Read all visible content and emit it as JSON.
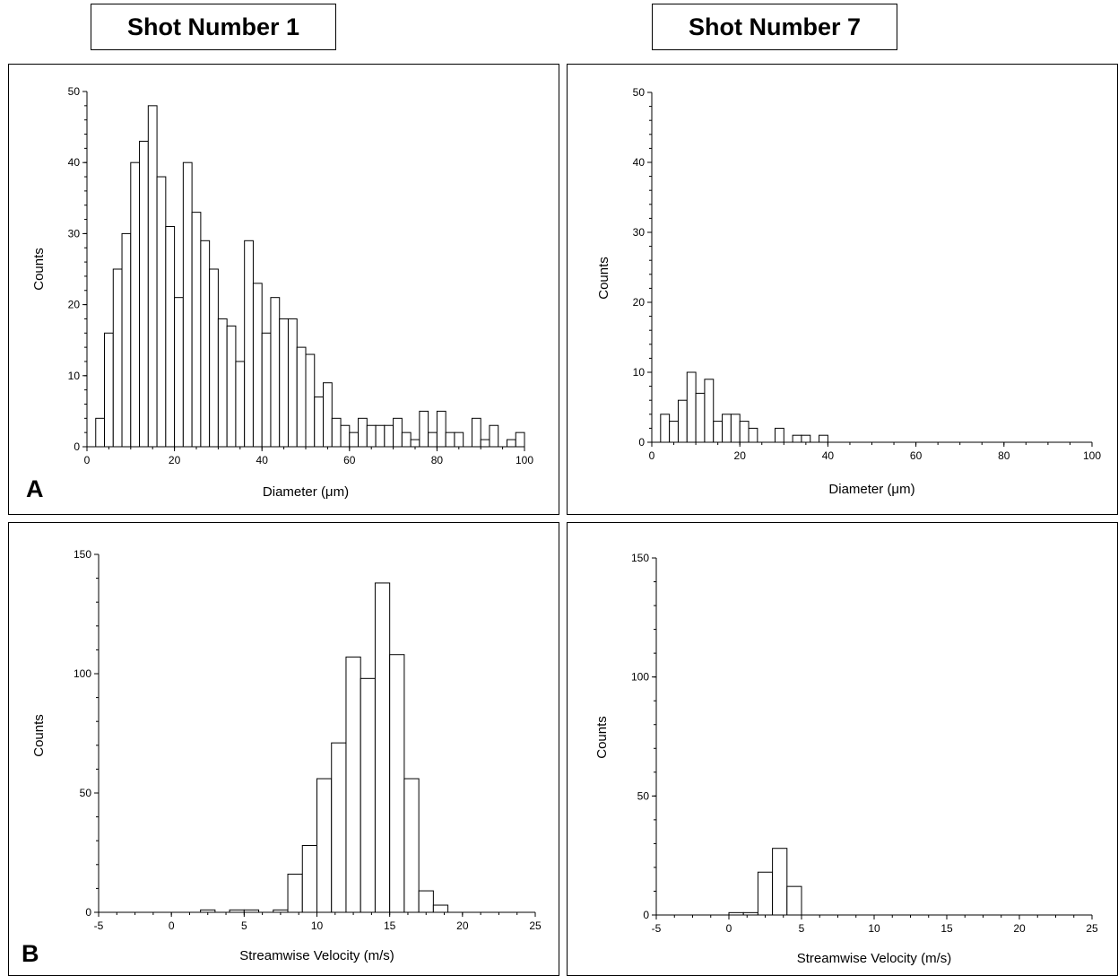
{
  "headers": {
    "left": "Shot Number 1",
    "right": "Shot Number 7"
  },
  "panel_letters": {
    "a": "A",
    "b": "B"
  },
  "chart_data": [
    {
      "type": "bar",
      "id": "diam1",
      "title": "",
      "xlabel": "Diameter (μm)",
      "ylabel": "Counts",
      "xlim": [
        0,
        100
      ],
      "ylim": [
        0,
        50
      ],
      "x_ticks": [
        "0",
        "20",
        "40",
        "60",
        "80",
        "100"
      ],
      "y_ticks": [
        "0",
        "10",
        "20",
        "30",
        "40",
        "50"
      ],
      "bin_width": 2,
      "bin_start": 2,
      "values": [
        4,
        16,
        25,
        30,
        40,
        43,
        48,
        38,
        31,
        21,
        40,
        33,
        29,
        25,
        18,
        17,
        12,
        29,
        23,
        16,
        21,
        18,
        18,
        14,
        13,
        7,
        9,
        4,
        3,
        2,
        4,
        3,
        3,
        3,
        4,
        2,
        1,
        5,
        2,
        5,
        2,
        2,
        0,
        4,
        1,
        3,
        0,
        1,
        2
      ]
    },
    {
      "type": "bar",
      "id": "diam7",
      "title": "",
      "xlabel": "Diameter (μm)",
      "ylabel": "Counts",
      "xlim": [
        0,
        100
      ],
      "ylim": [
        0,
        50
      ],
      "x_ticks": [
        "0",
        "20",
        "40",
        "60",
        "80",
        "100"
      ],
      "y_ticks": [
        "0",
        "10",
        "20",
        "30",
        "40",
        "50"
      ],
      "bin_width": 2,
      "bin_start": 2,
      "values": [
        4,
        3,
        6,
        10,
        7,
        9,
        3,
        4,
        4,
        3,
        2,
        0,
        0,
        2,
        0,
        1,
        1,
        0,
        1
      ]
    },
    {
      "type": "bar",
      "id": "vel1",
      "title": "",
      "xlabel": "Streamwise Velocity (m/s)",
      "ylabel": "Counts",
      "xlim": [
        -5,
        25
      ],
      "ylim": [
        0,
        150
      ],
      "x_ticks": [
        "-5",
        "0",
        "5",
        "10",
        "15",
        "20",
        "25"
      ],
      "y_ticks": [
        "0",
        "50",
        "100",
        "150"
      ],
      "bin_width": 1,
      "bin_start": 2,
      "values": [
        1,
        0,
        1,
        1,
        0,
        1,
        16,
        28,
        56,
        71,
        107,
        98,
        138,
        108,
        56,
        9,
        3
      ]
    },
    {
      "type": "bar",
      "id": "vel7",
      "title": "",
      "xlabel": "Streamwise Velocity (m/s)",
      "ylabel": "Counts",
      "xlim": [
        -5,
        25
      ],
      "ylim": [
        0,
        150
      ],
      "x_ticks": [
        "-5",
        "0",
        "5",
        "10",
        "15",
        "20",
        "25"
      ],
      "y_ticks": [
        "0",
        "50",
        "100",
        "150"
      ],
      "bin_width": 1,
      "bin_start": 0,
      "values": [
        1,
        1,
        18,
        28,
        12
      ]
    }
  ]
}
